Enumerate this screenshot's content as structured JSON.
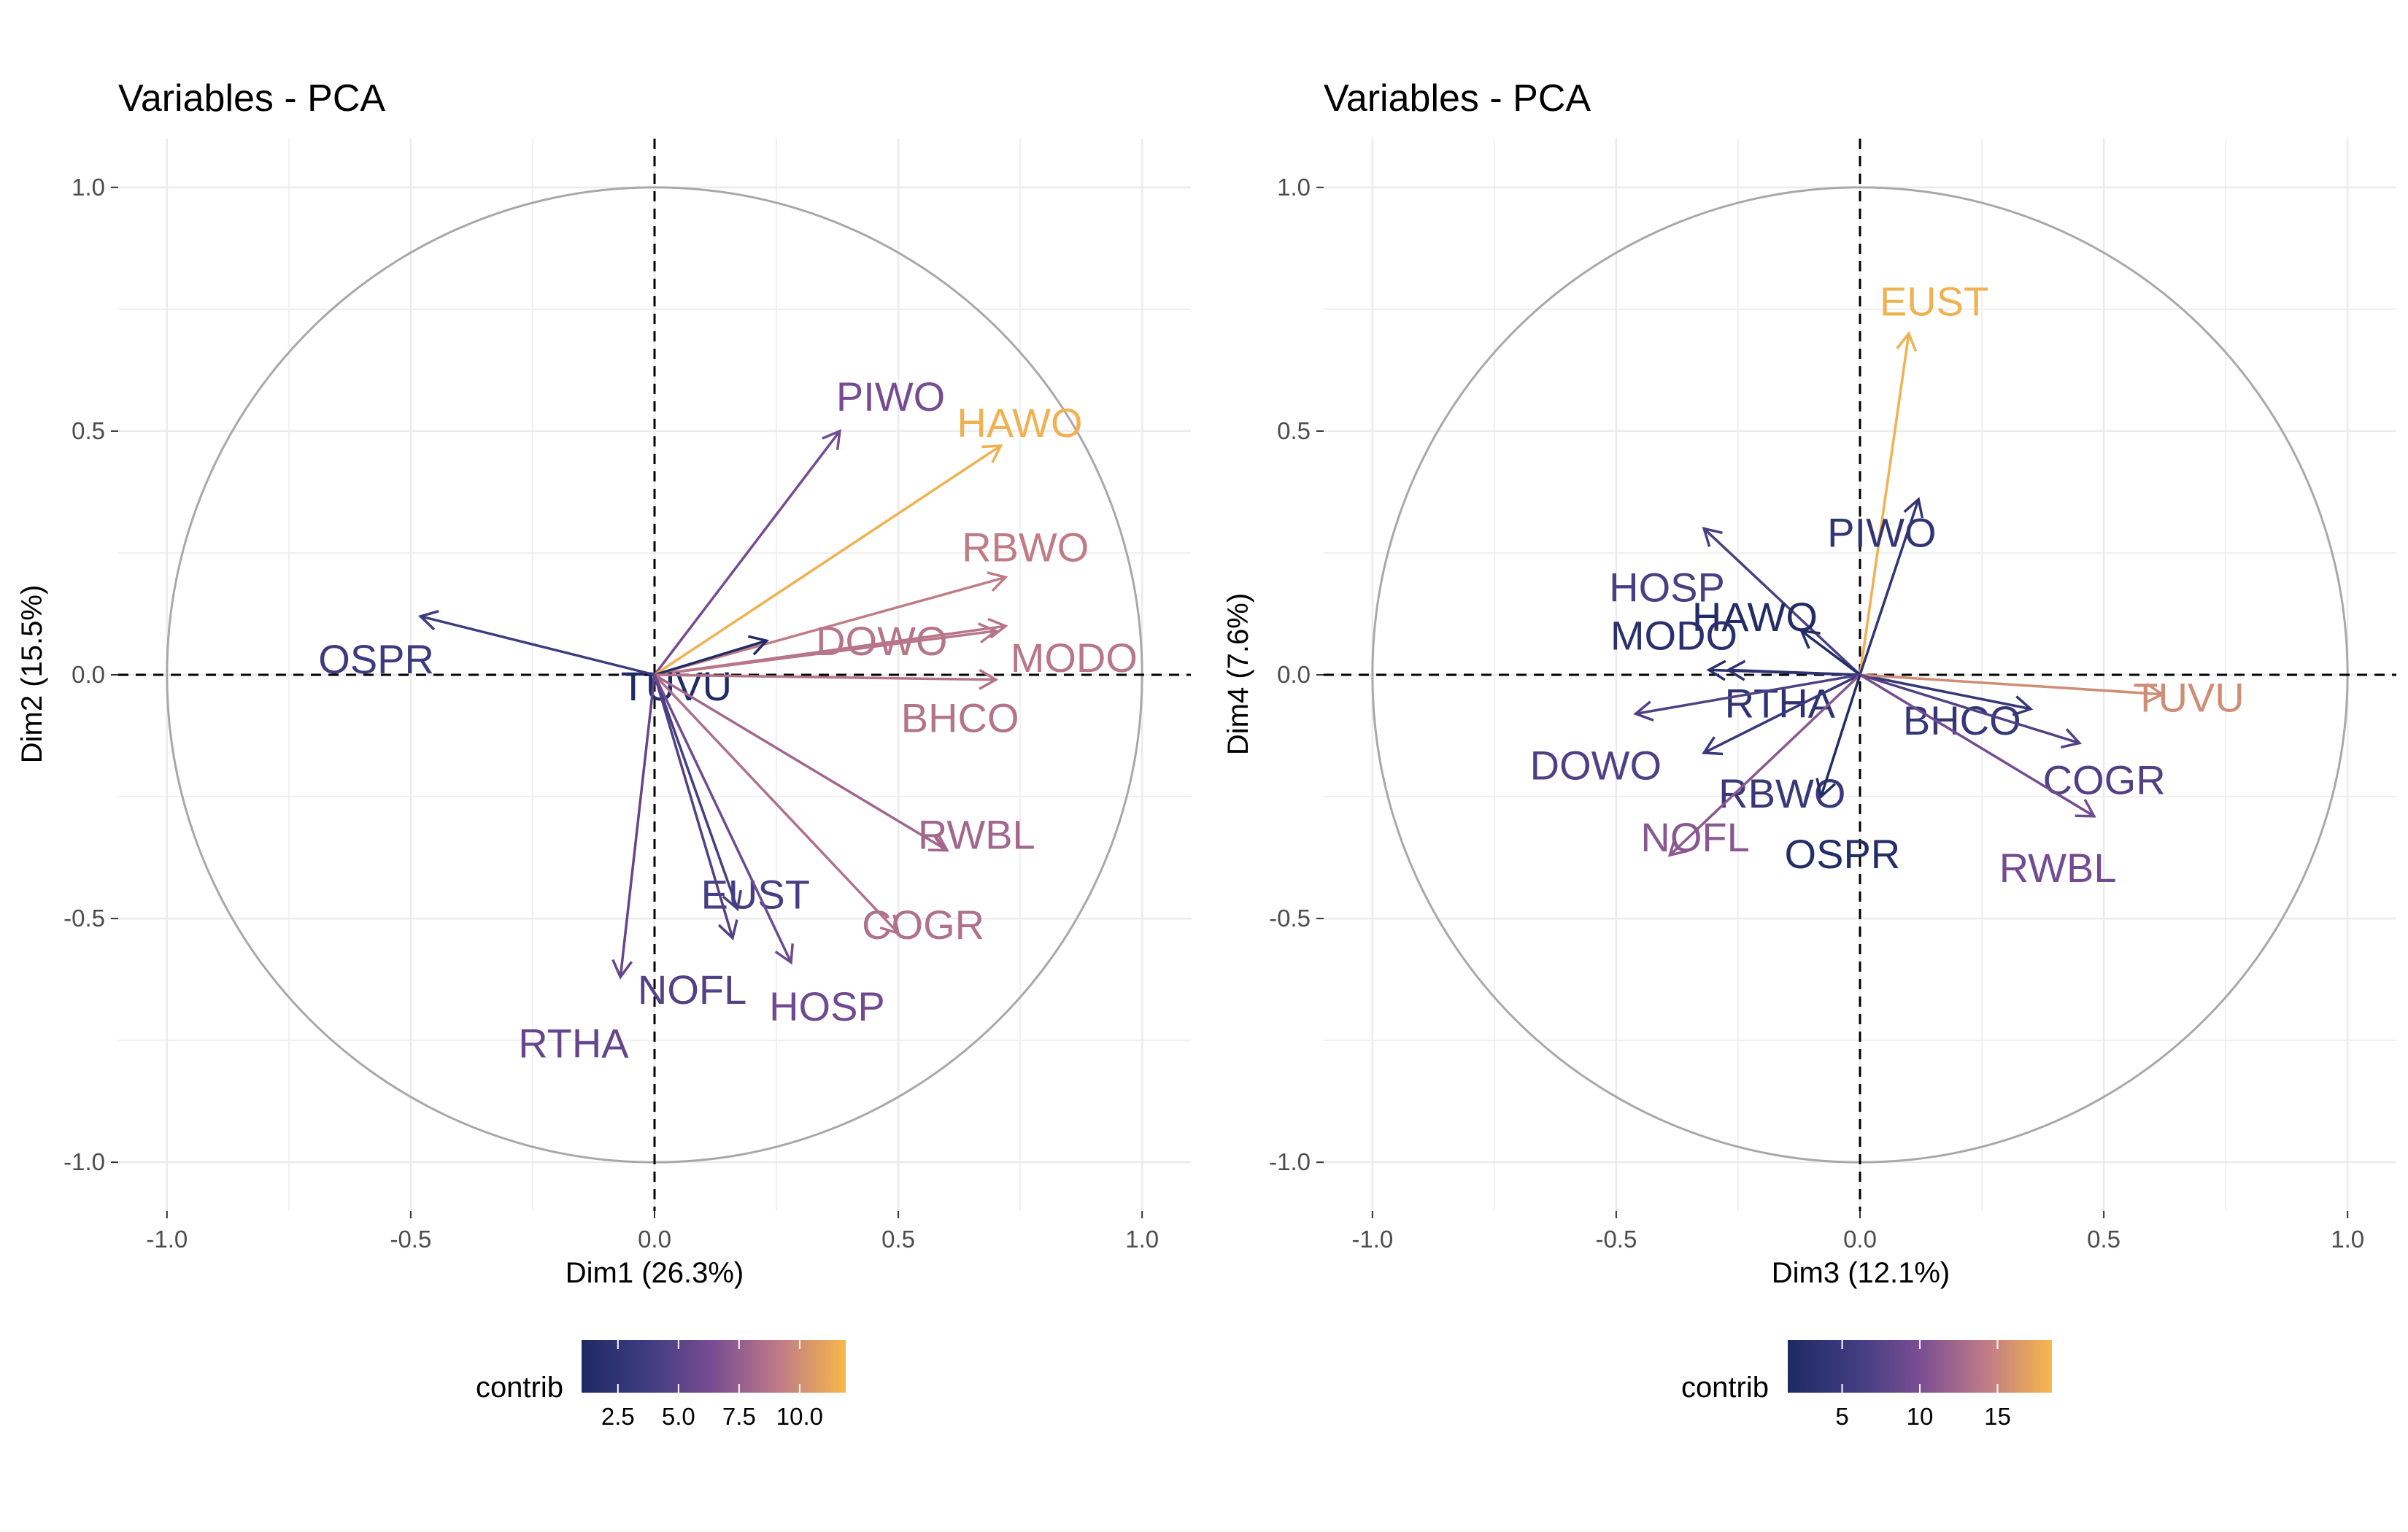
{
  "chart_data": [
    {
      "type": "scatter",
      "title": "Variables - PCA",
      "xlabel": "Dim1 (26.3%)",
      "ylabel": "Dim2 (15.5%)",
      "xlim": [
        -1.1,
        1.1
      ],
      "ylim": [
        -1.1,
        1.1
      ],
      "x_ticks": [
        "-1.0",
        "-0.5",
        "0.0",
        "0.5",
        "1.0"
      ],
      "y_ticks": [
        "-1.0",
        "-0.5",
        "0.0",
        "0.5",
        "1.0"
      ],
      "grid": true,
      "correlation_circle": true,
      "legend": {
        "title": "contrib",
        "placement": "bottom",
        "ticks": [
          "2.5",
          "5.0",
          "7.5",
          "10.0"
        ],
        "tick_values": [
          2.5,
          5.0,
          7.5,
          10.0
        ],
        "range": [
          1.0,
          11.9
        ]
      },
      "variables": [
        {
          "name": "PIWO",
          "x": 0.38,
          "y": 0.5,
          "contrib": 6.2
        },
        {
          "name": "HAWO",
          "x": 0.71,
          "y": 0.47,
          "contrib": 11.6
        },
        {
          "name": "RBWO",
          "x": 0.72,
          "y": 0.2,
          "contrib": 9.2
        },
        {
          "name": "DOWO",
          "x": 0.72,
          "y": 0.1,
          "contrib": 8.8
        },
        {
          "name": "MODO",
          "x": 0.7,
          "y": 0.09,
          "contrib": 8.9
        },
        {
          "name": "TUVU",
          "x": 0.23,
          "y": 0.07,
          "contrib": 1.2
        },
        {
          "name": "BHCO",
          "x": 0.7,
          "y": -0.01,
          "contrib": 8.7
        },
        {
          "name": "OSPR",
          "x": -0.48,
          "y": 0.12,
          "contrib": 3.6
        },
        {
          "name": "RWBL",
          "x": 0.6,
          "y": -0.36,
          "contrib": 8.0
        },
        {
          "name": "COGR",
          "x": 0.5,
          "y": -0.53,
          "contrib": 8.6
        },
        {
          "name": "EUST",
          "x": 0.17,
          "y": -0.48,
          "contrib": 4.0
        },
        {
          "name": "NOFL",
          "x": 0.16,
          "y": -0.54,
          "contrib": 4.6
        },
        {
          "name": "HOSP",
          "x": 0.28,
          "y": -0.59,
          "contrib": 6.0
        },
        {
          "name": "RTHA",
          "x": -0.07,
          "y": -0.62,
          "contrib": 5.4
        }
      ]
    },
    {
      "type": "scatter",
      "title": "Variables - PCA",
      "xlabel": "Dim3 (12.1%)",
      "ylabel": "Dim4 (7.6%)",
      "xlim": [
        -1.1,
        1.1
      ],
      "ylim": [
        -1.1,
        1.1
      ],
      "x_ticks": [
        "-1.0",
        "-0.5",
        "0.0",
        "0.5",
        "1.0"
      ],
      "y_ticks": [
        "-1.0",
        "-0.5",
        "0.0",
        "0.5",
        "1.0"
      ],
      "grid": true,
      "correlation_circle": true,
      "legend": {
        "title": "contrib",
        "placement": "bottom",
        "ticks": [
          "5",
          "10",
          "15"
        ],
        "tick_values": [
          5,
          10,
          15
        ],
        "range": [
          1.5,
          18.5
        ]
      },
      "variables": [
        {
          "name": "EUST",
          "x": 0.1,
          "y": 0.7,
          "contrib": 18.0
        },
        {
          "name": "PIWO",
          "x": 0.12,
          "y": 0.36,
          "contrib": 4.0
        },
        {
          "name": "HOSP",
          "x": -0.32,
          "y": 0.3,
          "contrib": 6.5
        },
        {
          "name": "HAWO",
          "x": -0.12,
          "y": 0.09,
          "contrib": 2.0
        },
        {
          "name": "MODO",
          "x": -0.31,
          "y": 0.01,
          "contrib": 3.0
        },
        {
          "name": "BHCO",
          "x": 0.35,
          "y": -0.07,
          "contrib": 4.5
        },
        {
          "name": "TUVU",
          "x": 0.62,
          "y": -0.04,
          "contrib": 15.5
        },
        {
          "name": "RTHA",
          "x": -0.27,
          "y": 0.01,
          "contrib": 3.5
        },
        {
          "name": "DOWO",
          "x": -0.46,
          "y": -0.08,
          "contrib": 6.8
        },
        {
          "name": "COGR",
          "x": 0.45,
          "y": -0.14,
          "contrib": 7.0
        },
        {
          "name": "RBWO",
          "x": -0.32,
          "y": -0.16,
          "contrib": 4.8
        },
        {
          "name": "RWBL",
          "x": 0.48,
          "y": -0.29,
          "contrib": 9.5
        },
        {
          "name": "NOFL",
          "x": -0.39,
          "y": -0.37,
          "contrib": 11.0
        },
        {
          "name": "OSPR",
          "x": -0.08,
          "y": -0.25,
          "contrib": 2.2
        }
      ]
    }
  ]
}
